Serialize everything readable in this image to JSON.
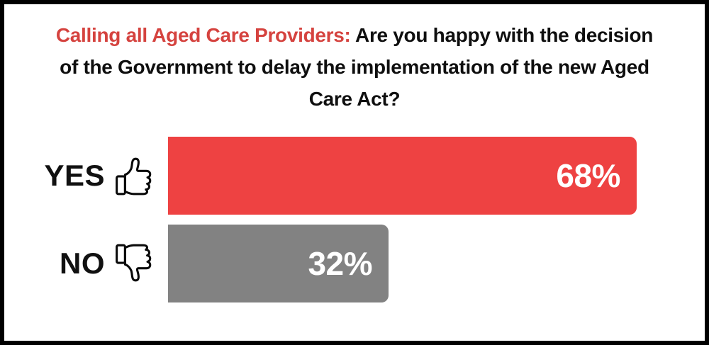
{
  "frame": {
    "border_color": "#000000",
    "background_color": "#ffffff"
  },
  "title": {
    "highlight": "Calling all Aged Care Providers:",
    "rest_line1": " Are you happy with the decision",
    "line2": "of the Government to delay the implementation of the new Aged",
    "line3": "Care Act?",
    "highlight_color": "#d5433f",
    "text_color": "#0f0f0f"
  },
  "chart_data": {
    "type": "bar",
    "orientation": "horizontal",
    "title": "Calling all Aged Care Providers: Are you happy with the decision of the Government to delay the implementation of the new Aged Care Act?",
    "categories": [
      "YES",
      "NO"
    ],
    "values": [
      68,
      32
    ],
    "unit": "%",
    "xlim": [
      0,
      100
    ],
    "grid": false,
    "legend": false,
    "axis_labels": "none",
    "value_label_color": "#ffffff",
    "series": [
      {
        "label": "YES",
        "value": 68,
        "display": "68%",
        "color": "#ee4242",
        "icon": "thumbs-up-icon"
      },
      {
        "label": "NO",
        "value": 32,
        "display": "32%",
        "color": "#828282",
        "icon": "thumbs-down-icon"
      }
    ]
  }
}
